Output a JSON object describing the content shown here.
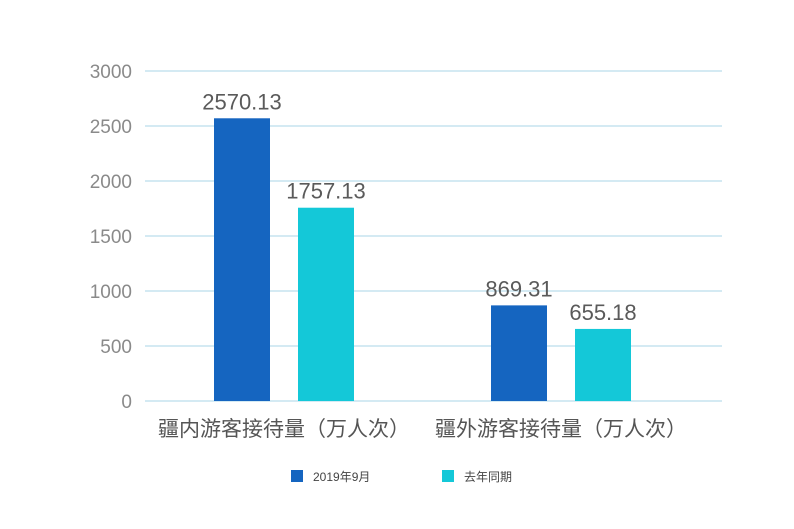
{
  "chart_data": {
    "type": "bar",
    "categories": [
      "疆内游客接待量（万人次）",
      "疆外游客接待量（万人次）"
    ],
    "series": [
      {
        "name": "2019年9月",
        "values": [
          2570.13,
          869.31
        ],
        "color": "#1565c0"
      },
      {
        "name": "去年同期",
        "values": [
          1757.13,
          655.18
        ],
        "color": "#14c8d8"
      }
    ],
    "data_labels": [
      [
        "2570.13",
        "869.31"
      ],
      [
        "1757.13",
        "655.18"
      ]
    ],
    "ylim": [
      0,
      3000
    ],
    "yticks": [
      0,
      500,
      1000,
      1500,
      2000,
      2500,
      3000
    ],
    "grid": true,
    "legend_position": "bottom-center",
    "title": "",
    "xlabel": "",
    "ylabel": ""
  }
}
